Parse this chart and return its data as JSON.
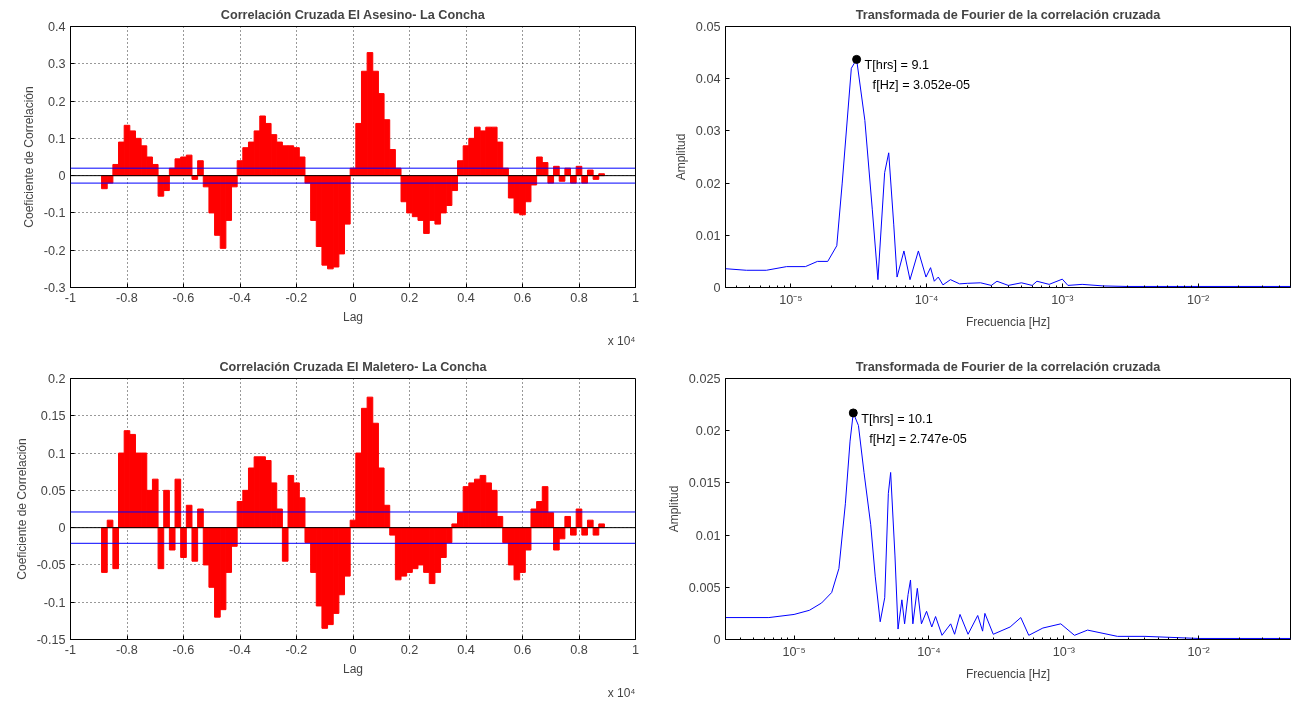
{
  "chart_data": [
    {
      "type": "bar",
      "title": "Correlación Cruzada El Asesino- La Concha",
      "xlabel": "Lag",
      "ylabel": "Coeficiente de Correlación",
      "x": [
        -0.88,
        -0.86,
        -0.84,
        -0.82,
        -0.8,
        -0.78,
        -0.76,
        -0.74,
        -0.72,
        -0.7,
        -0.68,
        -0.66,
        -0.64,
        -0.62,
        -0.6,
        -0.58,
        -0.56,
        -0.54,
        -0.52,
        -0.5,
        -0.48,
        -0.46,
        -0.44,
        -0.42,
        -0.4,
        -0.38,
        -0.36,
        -0.34,
        -0.32,
        -0.3,
        -0.28,
        -0.26,
        -0.24,
        -0.22,
        -0.2,
        -0.18,
        -0.16,
        -0.14,
        -0.12,
        -0.1,
        -0.08,
        -0.06,
        -0.04,
        -0.02,
        0,
        0.02,
        0.04,
        0.06,
        0.08,
        0.1,
        0.12,
        0.14,
        0.16,
        0.18,
        0.2,
        0.22,
        0.24,
        0.26,
        0.28,
        0.3,
        0.32,
        0.34,
        0.36,
        0.38,
        0.4,
        0.42,
        0.44,
        0.46,
        0.48,
        0.5,
        0.52,
        0.54,
        0.56,
        0.58,
        0.6,
        0.62,
        0.64,
        0.66,
        0.68,
        0.7,
        0.72,
        0.74,
        0.76,
        0.78,
        0.8,
        0.82,
        0.84,
        0.86,
        0.88
      ],
      "series": [
        {
          "color": "#ff0000",
          "values": [
            -0.035,
            -0.02,
            0.03,
            0.09,
            0.135,
            0.12,
            0.1,
            0.08,
            0.05,
            0.03,
            -0.055,
            -0.04,
            0.02,
            0.045,
            0.05,
            0.055,
            -0.01,
            0.04,
            -0.03,
            -0.1,
            -0.16,
            -0.195,
            -0.12,
            -0.03,
            0.04,
            0.075,
            0.09,
            0.12,
            0.16,
            0.14,
            0.11,
            0.09,
            0.08,
            0.08,
            0.075,
            0.05,
            -0.02,
            -0.12,
            -0.19,
            -0.24,
            -0.25,
            -0.245,
            -0.21,
            -0.13,
            0.02,
            0.14,
            0.28,
            0.33,
            0.28,
            0.22,
            0.15,
            0.07,
            0.02,
            -0.07,
            -0.1,
            -0.11,
            -0.12,
            -0.155,
            -0.12,
            -0.13,
            -0.1,
            -0.08,
            -0.04,
            0.04,
            0.08,
            0.1,
            0.13,
            0.12,
            0.13,
            0.13,
            0.09,
            0.02,
            -0.06,
            -0.1,
            -0.105,
            -0.07,
            -0.025,
            0.05,
            0.035,
            -0.02,
            0.025,
            -0.015,
            0.02,
            -0.02,
            0.025,
            -0.02,
            0.015,
            -0.01,
            0.005
          ]
        }
      ],
      "xlim": [
        -1,
        1
      ],
      "xticks": [
        -1,
        -0.8,
        -0.6,
        -0.4,
        -0.2,
        0,
        0.2,
        0.4,
        0.6,
        0.8,
        1
      ],
      "ylim": [
        -0.3,
        0.4
      ],
      "yticks": [
        -0.3,
        -0.2,
        -0.1,
        0,
        0.1,
        0.2,
        0.3,
        0.4
      ],
      "ref_lines": [
        {
          "axis": "y",
          "value": 0.02,
          "color": "#0000ff"
        },
        {
          "axis": "y",
          "value": 0,
          "color": "#000000"
        },
        {
          "axis": "y",
          "value": -0.02,
          "color": "#0000ff"
        }
      ],
      "annotations": [
        "x 10⁴"
      ],
      "grid": true
    },
    {
      "type": "line",
      "title": "Transformada de Fourier de la correlación cruzada",
      "xlabel": "Frecuencia [Hz]",
      "ylabel": "Amplitud",
      "log": "x",
      "series": [
        {
          "color": "#0000ff",
          "x": [
            3.3e-06,
            4.7e-06,
            6.6e-06,
            9.3e-06,
            1.28e-05,
            1.57e-05,
            1.87e-05,
            2.18e-05,
            2.39e-05,
            2.79e-05,
            3.052e-05,
            3.51e-05,
            3.98e-05,
            4.38e-05,
            4.91e-05,
            5.26e-05,
            5.73e-05,
            6.06e-05,
            6.81e-05,
            7.55e-05,
            8.7e-05,
            9.9e-05,
            0.000107,
            0.000114,
            0.000122,
            0.000132,
            0.00015,
            0.000175,
            0.0002,
            0.00025,
            0.0003,
            0.00033,
            0.0004,
            0.0005,
            0.0006,
            0.00065,
            0.0008,
            0.001,
            0.0011,
            0.0014,
            0.002,
            0.003,
            0.005,
            0.01,
            0.02,
            0.048
          ],
          "values": [
            0.0036,
            0.0033,
            0.0033,
            0.004,
            0.004,
            0.005,
            0.005,
            0.008,
            0.02,
            0.042,
            0.0437,
            0.032,
            0.015,
            0.0015,
            0.022,
            0.0258,
            0.012,
            0.002,
            0.007,
            0.0015,
            0.007,
            0.002,
            0.0038,
            0.0012,
            0.002,
            0.0005,
            0.0015,
            0.0007,
            0.0008,
            0.0009,
            0.0004,
            0.0012,
            0.0004,
            0.0009,
            0.0004,
            0.0012,
            0.0006,
            0.0016,
            0.0004,
            0.0006,
            0.0003,
            0.0002,
            0.0002,
            0.0002,
            0.0002,
            0.0002
          ]
        },
        {
          "type": "scatter",
          "color": "#000000",
          "marker": "circle",
          "x": [
            3.052e-05
          ],
          "values": [
            0.0437
          ]
        }
      ],
      "xlim": [
        3.3e-06,
        0.048
      ],
      "xticks": [
        {
          "value": 1e-05,
          "label": "10⁻⁵"
        },
        {
          "value": 0.0001,
          "label": "10⁻⁴"
        },
        {
          "value": 0.001,
          "label": "10⁻³"
        },
        {
          "value": 0.01,
          "label": "10⁻²"
        }
      ],
      "ylim": [
        0,
        0.05
      ],
      "yticks": [
        0,
        0.01,
        0.02,
        0.03,
        0.04,
        0.05
      ],
      "annotations": [
        "T[hrs] = 9.1",
        "f[Hz] =  3.052e-05"
      ],
      "grid": false
    },
    {
      "type": "bar",
      "title": "Correlación Cruzada El Maletero- La Concha",
      "xlabel": "Lag",
      "ylabel": "Coeficiente de Correlación",
      "x": [
        -0.88,
        -0.86,
        -0.84,
        -0.82,
        -0.8,
        -0.78,
        -0.76,
        -0.74,
        -0.72,
        -0.7,
        -0.68,
        -0.66,
        -0.64,
        -0.62,
        -0.6,
        -0.58,
        -0.56,
        -0.54,
        -0.52,
        -0.5,
        -0.48,
        -0.46,
        -0.44,
        -0.42,
        -0.4,
        -0.38,
        -0.36,
        -0.34,
        -0.32,
        -0.3,
        -0.28,
        -0.26,
        -0.24,
        -0.22,
        -0.2,
        -0.18,
        -0.16,
        -0.14,
        -0.12,
        -0.1,
        -0.08,
        -0.06,
        -0.04,
        -0.02,
        0,
        0.02,
        0.04,
        0.06,
        0.08,
        0.1,
        0.12,
        0.14,
        0.16,
        0.18,
        0.2,
        0.22,
        0.24,
        0.26,
        0.28,
        0.3,
        0.32,
        0.34,
        0.36,
        0.38,
        0.4,
        0.42,
        0.44,
        0.46,
        0.48,
        0.5,
        0.52,
        0.54,
        0.56,
        0.58,
        0.6,
        0.62,
        0.64,
        0.66,
        0.68,
        0.7,
        0.72,
        0.74,
        0.76,
        0.78,
        0.8,
        0.82,
        0.84,
        0.86,
        0.88
      ],
      "series": [
        {
          "color": "#ff0000",
          "values": [
            -0.06,
            0.01,
            -0.055,
            0.1,
            0.13,
            0.125,
            0.1,
            0.1,
            0.05,
            0.065,
            -0.055,
            0.05,
            -0.03,
            0.065,
            -0.04,
            0.03,
            -0.045,
            0.025,
            -0.05,
            -0.08,
            -0.12,
            -0.11,
            -0.06,
            -0.025,
            0.035,
            0.05,
            0.08,
            0.095,
            0.095,
            0.09,
            0.06,
            0.025,
            -0.045,
            0.07,
            0.06,
            0.04,
            -0.02,
            -0.06,
            -0.105,
            -0.135,
            -0.13,
            -0.115,
            -0.09,
            -0.065,
            0.01,
            0.1,
            0.16,
            0.175,
            0.14,
            0.08,
            0.03,
            -0.01,
            -0.07,
            -0.065,
            -0.06,
            -0.055,
            -0.05,
            -0.06,
            -0.075,
            -0.06,
            -0.04,
            -0.02,
            0.005,
            0.02,
            0.055,
            0.06,
            0.065,
            0.07,
            0.06,
            0.05,
            0.015,
            -0.02,
            -0.05,
            -0.07,
            -0.06,
            -0.03,
            0.025,
            0.035,
            0.055,
            0.02,
            -0.03,
            -0.015,
            0.015,
            -0.01,
            0.025,
            -0.01,
            0.01,
            -0.01,
            0.005
          ]
        }
      ],
      "xlim": [
        -1,
        1
      ],
      "xticks": [
        -1,
        -0.8,
        -0.6,
        -0.4,
        -0.2,
        0,
        0.2,
        0.4,
        0.6,
        0.8,
        1
      ],
      "ylim": [
        -0.15,
        0.2
      ],
      "yticks": [
        -0.15,
        -0.1,
        -0.05,
        0,
        0.05,
        0.1,
        0.15,
        0.2
      ],
      "ref_lines": [
        {
          "axis": "y",
          "value": 0.021,
          "color": "#0000ff"
        },
        {
          "axis": "y",
          "value": 0,
          "color": "#000000"
        },
        {
          "axis": "y",
          "value": -0.021,
          "color": "#0000ff"
        }
      ],
      "annotations": [
        "x 10⁴"
      ],
      "grid": true
    },
    {
      "type": "line",
      "title": "Transformada de Fourier de la correlación cruzada",
      "xlabel": "Frecuencia [Hz]",
      "ylabel": "Amplitud",
      "log": "x",
      "series": [
        {
          "color": "#0000ff",
          "x": [
            3.1e-06,
            6.5e-06,
            1e-05,
            1.3e-05,
            1.6e-05,
            1.9e-05,
            2.15e-05,
            2.4e-05,
            2.6e-05,
            2.747e-05,
            3e-05,
            3.3e-05,
            3.7e-05,
            4e-05,
            4.35e-05,
            4.7e-05,
            5e-05,
            5.2e-05,
            5.6e-05,
            5.9e-05,
            6.3e-05,
            6.6e-05,
            7e-05,
            7.3e-05,
            7.6e-05,
            8.2e-05,
            8.8e-05,
            9.6e-05,
            0.000105,
            0.000112,
            0.000125,
            0.000145,
            0.000155,
            0.00017,
            0.000195,
            0.00023,
            0.00025,
            0.00026,
            0.0003,
            0.0004,
            0.00048,
            0.00055,
            0.0007,
            0.00095,
            0.0012,
            0.0015,
            0.0025,
            0.004,
            0.01,
            0.048
          ],
          "values": [
            0.0021,
            0.0021,
            0.0024,
            0.0028,
            0.0035,
            0.0045,
            0.0068,
            0.013,
            0.019,
            0.0217,
            0.0205,
            0.016,
            0.011,
            0.006,
            0.0017,
            0.004,
            0.014,
            0.016,
            0.008,
            0.001,
            0.0038,
            0.0015,
            0.0043,
            0.0057,
            0.0015,
            0.0049,
            0.0015,
            0.0027,
            0.0012,
            0.0022,
            0.0004,
            0.0015,
            0.0005,
            0.0024,
            0.0005,
            0.0023,
            0.0008,
            0.0025,
            0.0005,
            0.0012,
            0.0021,
            0.0004,
            0.0011,
            0.0015,
            0.0004,
            0.0009,
            0.0003,
            0.0003,
            0.0001,
            0.0001
          ]
        },
        {
          "type": "scatter",
          "color": "#000000",
          "marker": "circle",
          "x": [
            2.747e-05
          ],
          "values": [
            0.0217
          ]
        }
      ],
      "xlim": [
        3.1e-06,
        0.048
      ],
      "xticks": [
        {
          "value": 1e-05,
          "label": "10⁻⁵"
        },
        {
          "value": 0.0001,
          "label": "10⁻⁴"
        },
        {
          "value": 0.001,
          "label": "10⁻³"
        },
        {
          "value": 0.01,
          "label": "10⁻²"
        }
      ],
      "ylim": [
        0,
        0.025
      ],
      "yticks": [
        0,
        0.005,
        0.01,
        0.015,
        0.02,
        0.025
      ],
      "annotations": [
        "T[hrs] = 10.1",
        "f[Hz] =  2.747e-05"
      ],
      "grid": false
    }
  ]
}
